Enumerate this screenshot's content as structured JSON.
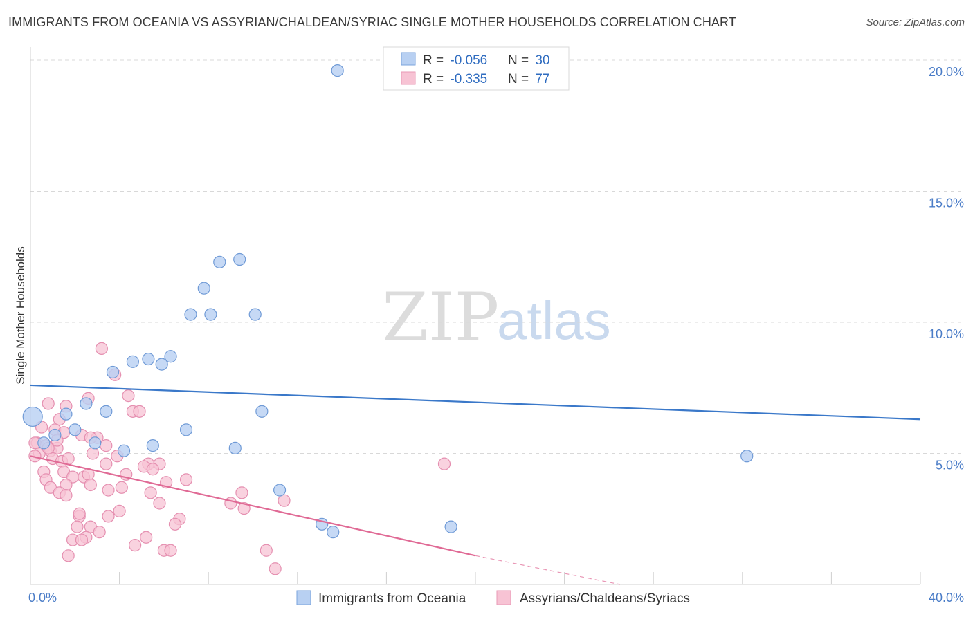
{
  "title": "IMMIGRANTS FROM OCEANIA VS ASSYRIAN/CHALDEAN/SYRIAC SINGLE MOTHER HOUSEHOLDS CORRELATION CHART",
  "source": "Source: ZipAtlas.com",
  "watermark": {
    "zip": "ZIP",
    "atlas": "atlas"
  },
  "colors": {
    "blue": "#3a78c9",
    "blue_fill": "#b8d0f2",
    "pink": "#e06a95",
    "pink_fill": "#f7c3d4",
    "grid": "#d8d8d8"
  },
  "chart_data": {
    "type": "scatter",
    "title": "IMMIGRANTS FROM OCEANIA VS ASSYRIAN/CHALDEAN/SYRIAC SINGLE MOTHER HOUSEHOLDS CORRELATION CHART",
    "xlabel": "",
    "ylabel": "Single Mother Households",
    "xlim": [
      0,
      40
    ],
    "ylim": [
      0,
      20.5
    ],
    "x_ticks": [
      {
        "value": 0,
        "label": "0.0%"
      },
      {
        "value": 40,
        "label": "40.0%"
      }
    ],
    "y_ticks": [
      {
        "value": 5,
        "label": "5.0%"
      },
      {
        "value": 10,
        "label": "10.0%"
      },
      {
        "value": 15,
        "label": "15.0%"
      },
      {
        "value": 20,
        "label": "20.0%"
      }
    ],
    "legend": [
      {
        "r_label": "R = ",
        "r_value": "-0.056",
        "n_label": "N = ",
        "n_value": "30"
      },
      {
        "r_label": "R = ",
        "r_value": "-0.335",
        "n_label": "N = ",
        "n_value": "77"
      }
    ],
    "series": [
      {
        "name": "Immigrants from Oceania",
        "trend": {
          "x0": 0,
          "y0": 7.6,
          "x1": 40,
          "y1": 6.3
        },
        "points": [
          [
            13.8,
            19.6
          ],
          [
            8.5,
            12.3
          ],
          [
            9.4,
            12.4
          ],
          [
            7.8,
            11.3
          ],
          [
            7.2,
            10.3
          ],
          [
            8.1,
            10.3
          ],
          [
            10.1,
            10.3
          ],
          [
            6.3,
            8.7
          ],
          [
            5.3,
            8.6
          ],
          [
            4.6,
            8.5
          ],
          [
            5.9,
            8.4
          ],
          [
            3.7,
            8.1
          ],
          [
            2.5,
            6.9
          ],
          [
            3.4,
            6.6
          ],
          [
            10.4,
            6.6
          ],
          [
            1.6,
            6.5
          ],
          [
            2.0,
            5.9
          ],
          [
            7.0,
            5.9
          ],
          [
            1.1,
            5.7
          ],
          [
            0.6,
            5.4
          ],
          [
            2.9,
            5.4
          ],
          [
            5.5,
            5.3
          ],
          [
            4.2,
            5.1
          ],
          [
            9.2,
            5.2
          ],
          [
            0.1,
            6.4
          ],
          [
            32.2,
            4.9
          ],
          [
            11.2,
            3.6
          ],
          [
            13.1,
            2.3
          ],
          [
            13.6,
            2.0
          ],
          [
            18.9,
            2.2
          ]
        ]
      },
      {
        "name": "Assyrians/Chaldeans/Syriacs",
        "trend": {
          "x0": 0,
          "y0": 4.9,
          "x1": 20,
          "y1": 1.1,
          "dash_x1": 26.5,
          "dash_y1": 0
        },
        "points": [
          [
            3.2,
            9.0
          ],
          [
            3.8,
            8.0
          ],
          [
            4.4,
            7.2
          ],
          [
            2.6,
            7.1
          ],
          [
            0.8,
            6.9
          ],
          [
            1.6,
            6.8
          ],
          [
            4.6,
            6.6
          ],
          [
            4.9,
            6.6
          ],
          [
            1.3,
            6.3
          ],
          [
            0.5,
            6.0
          ],
          [
            1.1,
            5.9
          ],
          [
            2.3,
            5.7
          ],
          [
            3.0,
            5.6
          ],
          [
            2.7,
            5.6
          ],
          [
            1.5,
            5.8
          ],
          [
            0.3,
            5.4
          ],
          [
            0.7,
            5.3
          ],
          [
            0.9,
            5.1
          ],
          [
            1.2,
            5.2
          ],
          [
            0.4,
            5.0
          ],
          [
            0.2,
            4.9
          ],
          [
            1.0,
            4.8
          ],
          [
            3.4,
            5.3
          ],
          [
            1.4,
            4.7
          ],
          [
            3.4,
            4.6
          ],
          [
            5.3,
            4.6
          ],
          [
            5.8,
            4.6
          ],
          [
            5.1,
            4.5
          ],
          [
            5.5,
            4.4
          ],
          [
            18.6,
            4.6
          ],
          [
            0.6,
            4.3
          ],
          [
            1.5,
            4.3
          ],
          [
            1.9,
            4.1
          ],
          [
            2.4,
            4.1
          ],
          [
            0.7,
            4.0
          ],
          [
            2.6,
            4.2
          ],
          [
            7.0,
            4.0
          ],
          [
            6.1,
            3.9
          ],
          [
            1.6,
            3.8
          ],
          [
            0.9,
            3.7
          ],
          [
            2.7,
            3.8
          ],
          [
            3.5,
            3.6
          ],
          [
            4.1,
            3.7
          ],
          [
            1.3,
            3.5
          ],
          [
            5.4,
            3.5
          ],
          [
            9.5,
            3.5
          ],
          [
            1.6,
            3.4
          ],
          [
            5.8,
            3.1
          ],
          [
            9.0,
            3.1
          ],
          [
            11.4,
            3.2
          ],
          [
            9.6,
            2.9
          ],
          [
            4.0,
            2.8
          ],
          [
            2.2,
            2.6
          ],
          [
            3.5,
            2.6
          ],
          [
            6.7,
            2.5
          ],
          [
            6.5,
            2.3
          ],
          [
            2.1,
            2.2
          ],
          [
            2.7,
            2.2
          ],
          [
            3.1,
            2.0
          ],
          [
            5.2,
            1.8
          ],
          [
            2.5,
            1.8
          ],
          [
            1.9,
            1.7
          ],
          [
            2.3,
            1.7
          ],
          [
            4.7,
            1.5
          ],
          [
            6.0,
            1.3
          ],
          [
            10.6,
            1.3
          ],
          [
            1.7,
            1.1
          ],
          [
            6.3,
            1.3
          ],
          [
            11.0,
            0.6
          ],
          [
            0.2,
            5.4
          ],
          [
            0.8,
            5.2
          ],
          [
            1.2,
            5.5
          ],
          [
            2.8,
            5.0
          ],
          [
            3.9,
            4.9
          ],
          [
            4.3,
            4.2
          ],
          [
            1.7,
            4.8
          ],
          [
            2.2,
            2.7
          ]
        ]
      }
    ]
  }
}
